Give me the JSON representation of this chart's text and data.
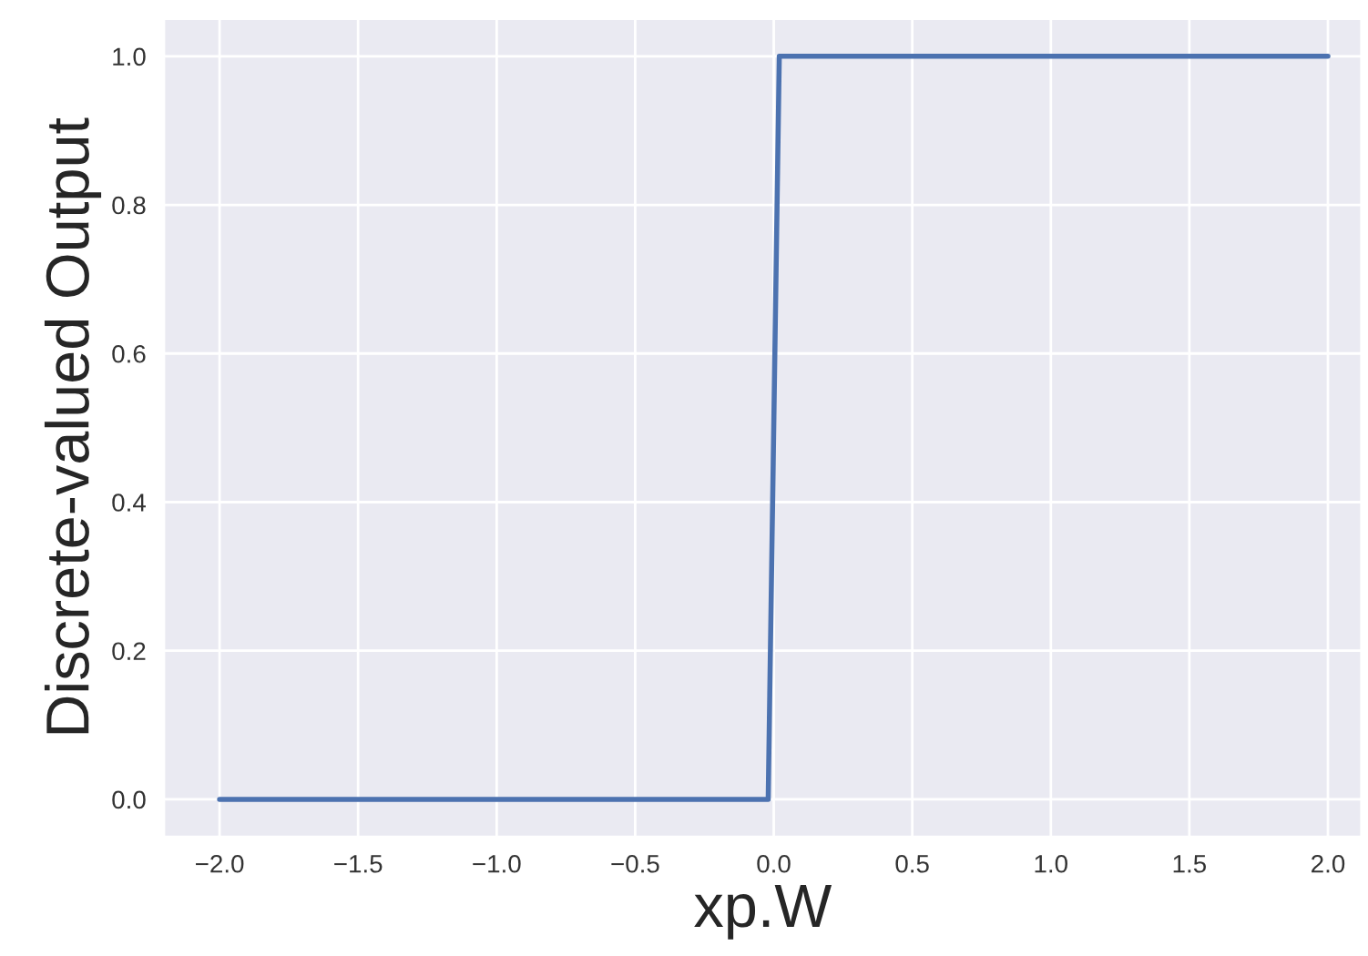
{
  "chart_data": {
    "type": "line",
    "xlabel": "xp.W",
    "ylabel": "Discrete-valued Output",
    "x": [
      -2.0,
      -0.02,
      0.02,
      2.0
    ],
    "series": [
      {
        "color": "#4c72b0",
        "values": [
          0,
          0,
          1,
          1
        ]
      }
    ],
    "xlim": [
      -2.2,
      2.12
    ],
    "ylim": [
      -0.05,
      1.05
    ],
    "xticks": [
      {
        "value": -2.0,
        "label": "−2.0"
      },
      {
        "value": -1.5,
        "label": "−1.5"
      },
      {
        "value": -1.0,
        "label": "−1.0"
      },
      {
        "value": -0.5,
        "label": "−0.5"
      },
      {
        "value": 0.0,
        "label": "0.0"
      },
      {
        "value": 0.5,
        "label": "0.5"
      },
      {
        "value": 1.0,
        "label": "1.0"
      },
      {
        "value": 1.5,
        "label": "1.5"
      },
      {
        "value": 2.0,
        "label": "2.0"
      }
    ],
    "yticks": [
      {
        "value": 0.0,
        "label": "0.0"
      },
      {
        "value": 0.2,
        "label": "0.2"
      },
      {
        "value": 0.4,
        "label": "0.4"
      },
      {
        "value": 0.6,
        "label": "0.6"
      },
      {
        "value": 0.8,
        "label": "0.8"
      },
      {
        "value": 1.0,
        "label": "1.0"
      }
    ],
    "grid": true
  }
}
